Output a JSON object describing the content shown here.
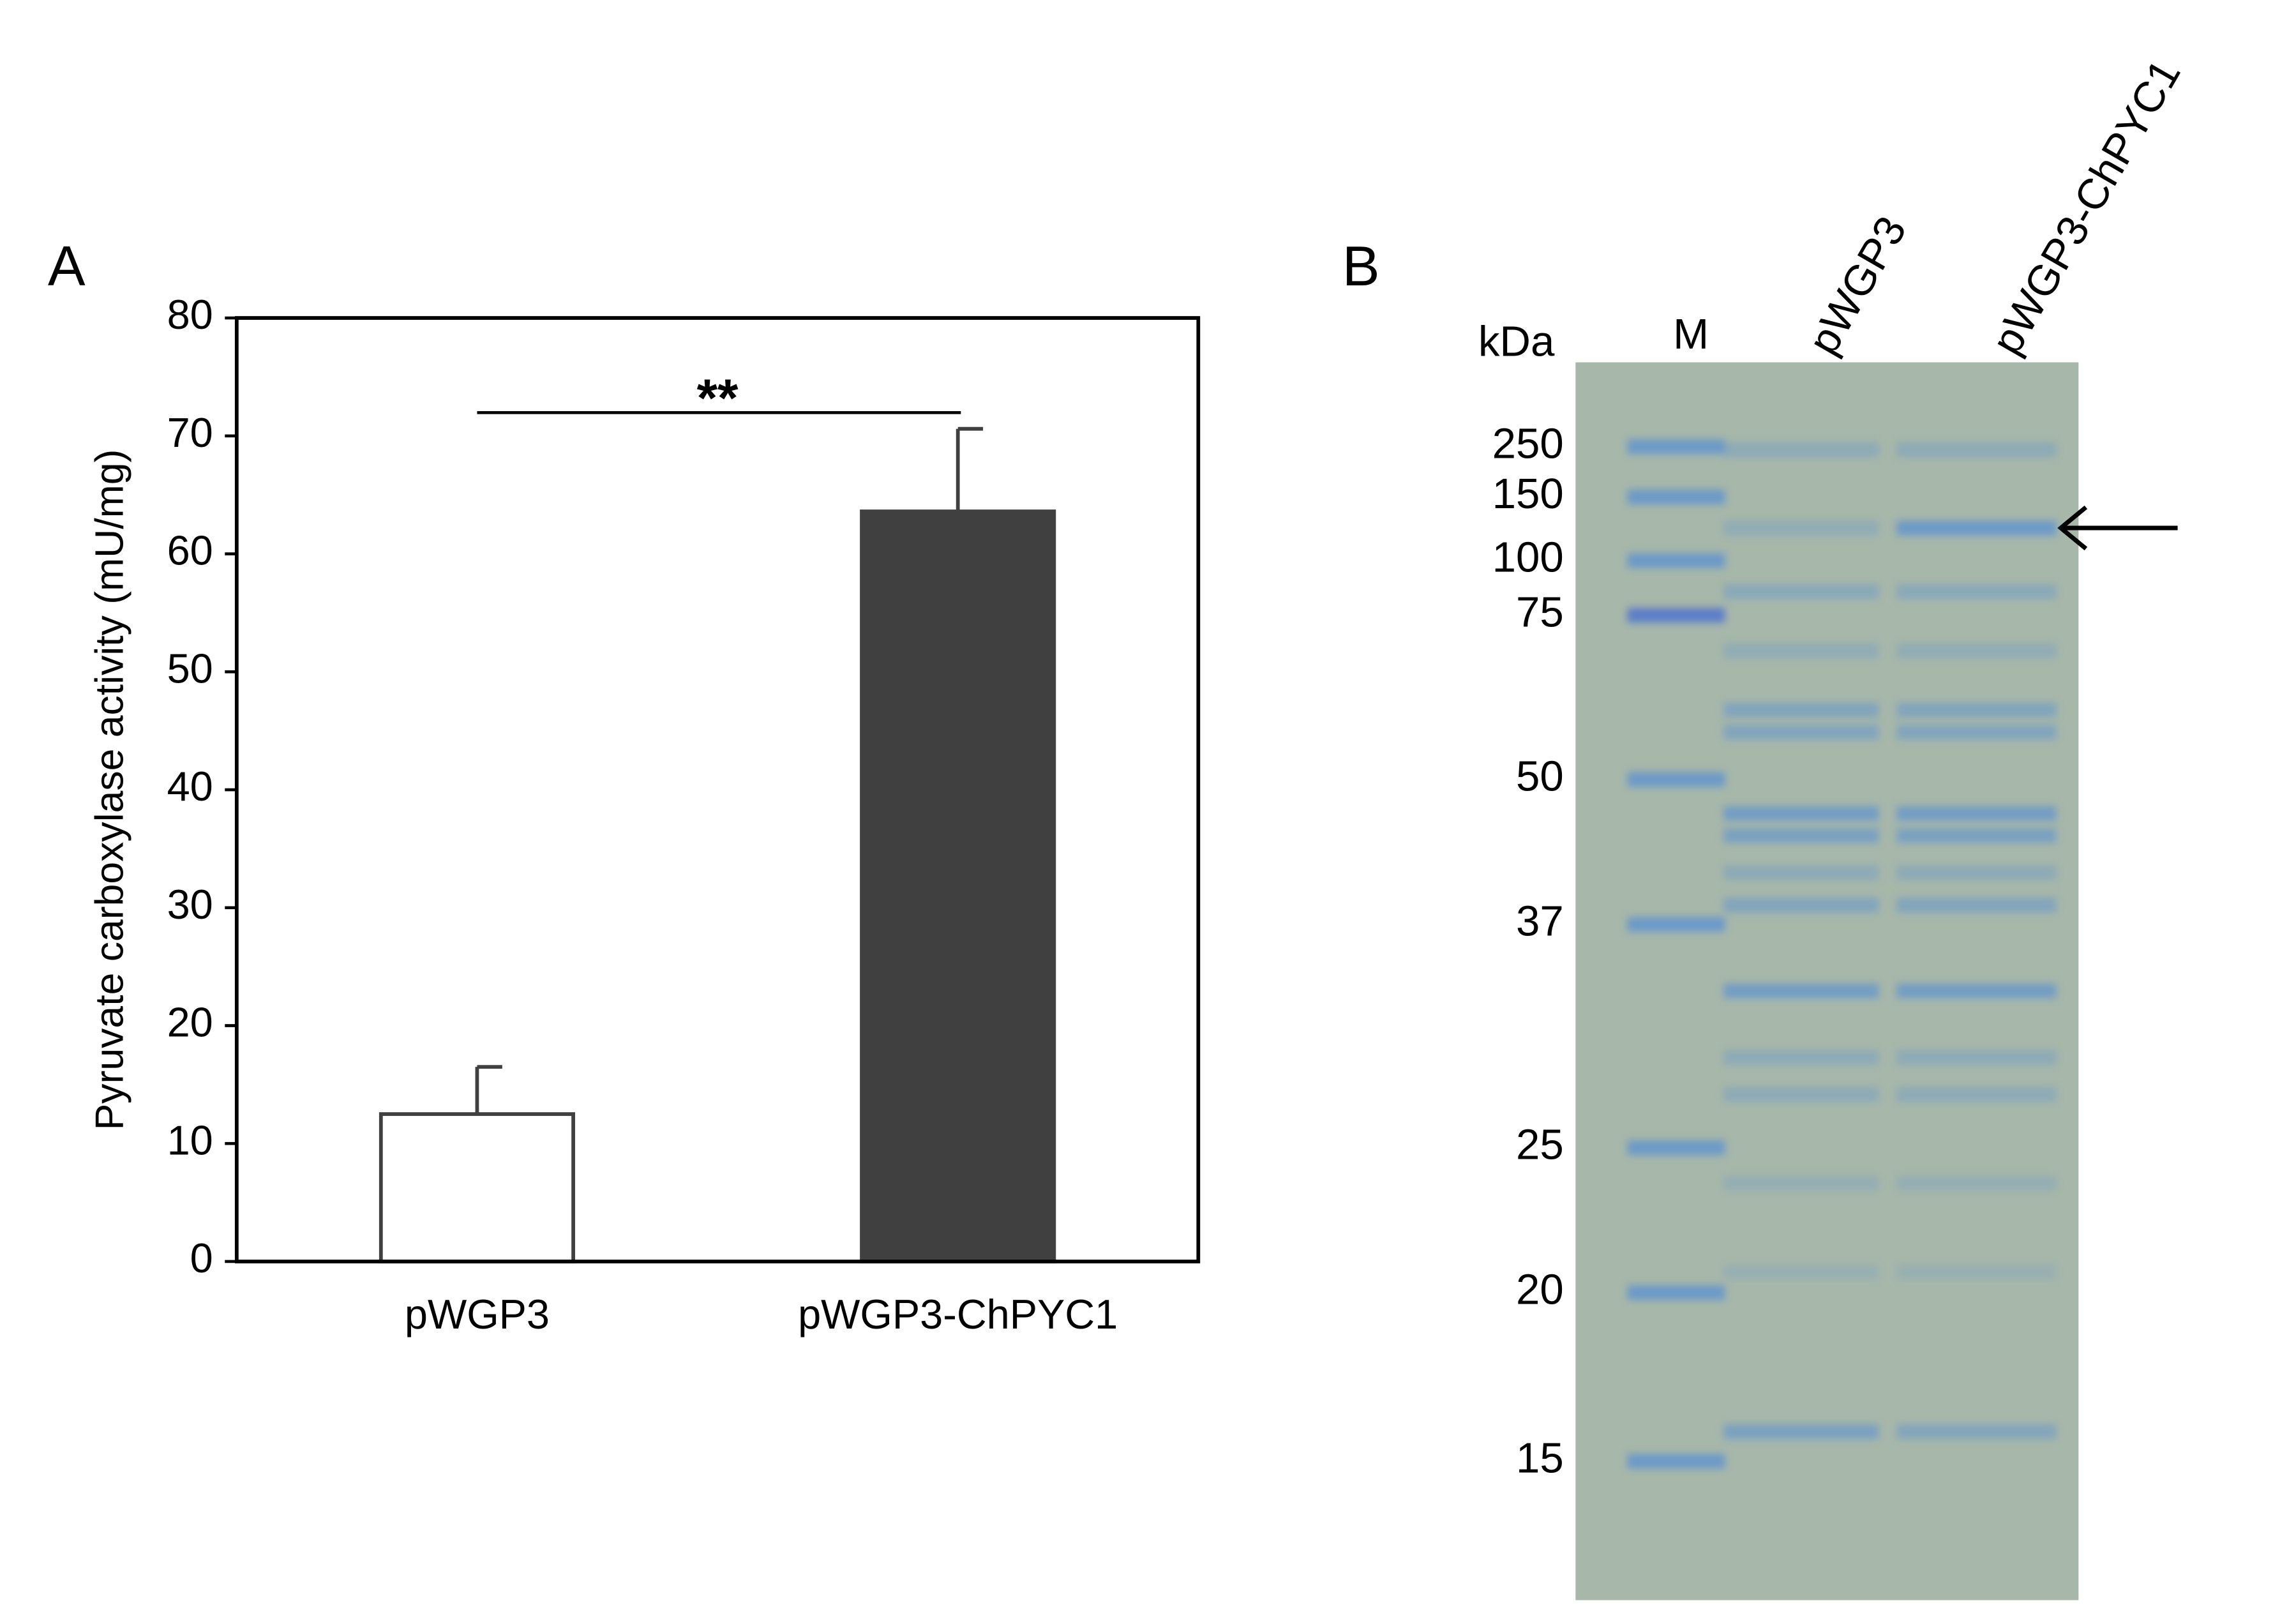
{
  "chart_data": {
    "type": "bar",
    "panel": "A",
    "ylabel": "Pyruvate carboxylase activity (mU/mg)",
    "categories": [
      "pWGP3",
      "pWGP3-ChPYC1"
    ],
    "values": [
      12.5,
      63.6
    ],
    "errors": [
      4,
      7
    ],
    "colors": [
      "#ffffff",
      "#404040"
    ],
    "ylim": [
      0,
      80
    ],
    "yticks": [
      0,
      10,
      20,
      30,
      40,
      50,
      60,
      70,
      80
    ],
    "annotation": "**"
  },
  "gel": {
    "panel": "B",
    "unit": "kDa",
    "lanes": [
      "M",
      "pWGP3",
      "pWGP3-ChPYC1"
    ],
    "markers": [
      "250",
      "150",
      "100",
      "75",
      "50",
      "37",
      "25",
      "20",
      "15"
    ]
  }
}
